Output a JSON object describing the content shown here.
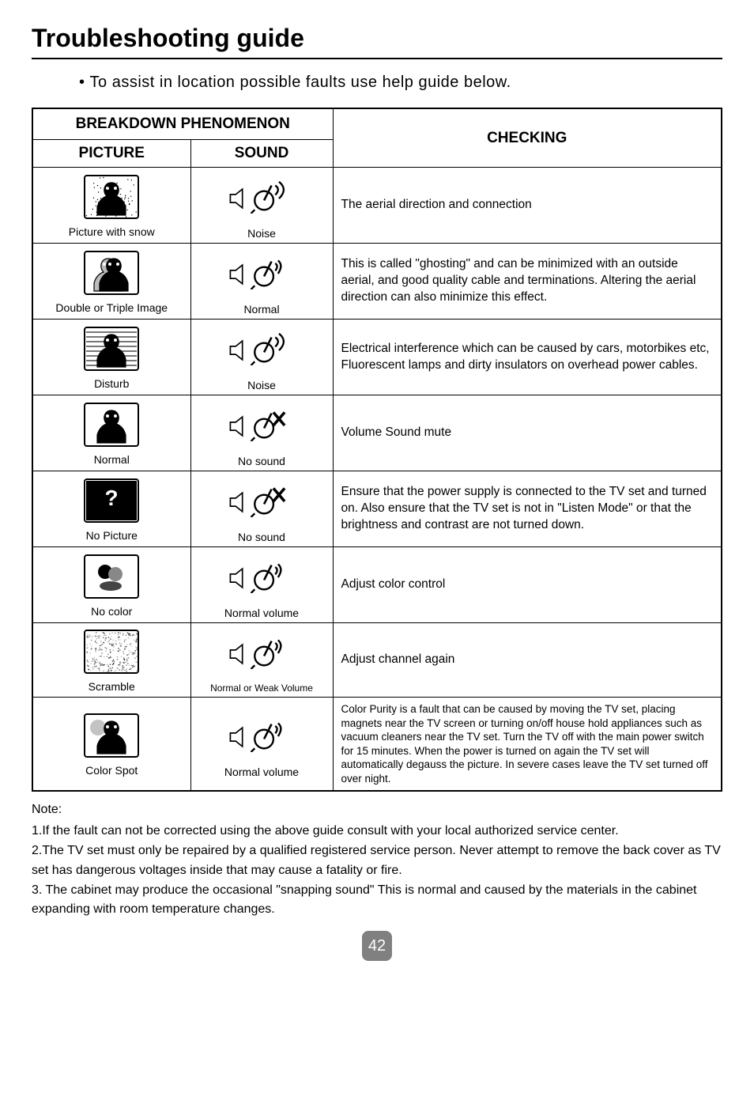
{
  "title": "Troubleshooting guide",
  "subline": "To assist in location possible faults use help guide below.",
  "table": {
    "header_top": "BREAKDOWN PHENOMENON",
    "header_picture": "PICTURE",
    "header_sound": "SOUND",
    "header_checking": "CHECKING",
    "rows": [
      {
        "picture_label": "Picture with snow",
        "sound_label": "Noise",
        "checking": "The aerial direction and connection",
        "pic_variant": "snow",
        "snd_variant": "noise"
      },
      {
        "picture_label": "Double or Triple Image",
        "sound_label": "Normal",
        "checking": "This is called \"ghosting\" and can be minimized with an outside aerial, and good quality cable and terminations.  Altering the aerial direction can also minimize this effect.",
        "pic_variant": "ghost",
        "snd_variant": "normal"
      },
      {
        "picture_label": "Disturb",
        "sound_label": "Noise",
        "checking": "Electrical interference which can be caused by cars, motorbikes etc, Fluorescent lamps and dirty insulators on overhead power cables.",
        "pic_variant": "disturb",
        "snd_variant": "noise"
      },
      {
        "picture_label": "Normal",
        "sound_label": "No sound",
        "checking": "Volume Sound mute",
        "pic_variant": "normal",
        "snd_variant": "nosound"
      },
      {
        "picture_label": "No Picture",
        "sound_label": "No sound",
        "checking": "Ensure that the power supply is connected to the TV set and turned on. Also ensure that the TV set is not  in \"Listen Mode\" or that the  brightness and contrast are not turned down.",
        "pic_variant": "nopic",
        "snd_variant": "nosound"
      },
      {
        "picture_label": "No color",
        "sound_label": "Normal volume",
        "checking": "Adjust color control",
        "pic_variant": "nocolor",
        "snd_variant": "normal"
      },
      {
        "picture_label": "Scramble",
        "sound_label": "Normal or Weak Volume",
        "checking": "Adjust channel again",
        "pic_variant": "scramble",
        "snd_variant": "normal",
        "sound_label_small": true
      },
      {
        "picture_label": "Color Spot",
        "sound_label": "Normal volume",
        "checking": "Color Purity is a fault that can be caused by moving the TV set, placing magnets near the TV screen or turning on/off house hold appliances such as vacuum cleaners near the TV set.  Turn the TV off with the main power switch for 15 minutes. When the power is turned on again the TV set will automatically degauss the picture. In severe cases leave the TV set turned off over night.",
        "pic_variant": "colorspot",
        "snd_variant": "normal",
        "checking_small": true
      }
    ]
  },
  "notes": {
    "heading": "Note:",
    "items": [
      "1.If the fault can not be corrected using the above guide consult with your local authorized service center.",
      "2.The TV set must only be repaired by a qualified registered service person.  Never attempt to remove the back cover as TV set has dangerous voltages inside that may cause a fatality or fire.",
      "3. The cabinet may produce the occasional \"snapping sound\" This is normal and caused by the materials in the cabinet expanding with room temperature changes."
    ]
  },
  "page_number": "42",
  "colors": {
    "text": "#000000",
    "bg": "#ffffff",
    "badge_bg": "#808080",
    "badge_fg": "#ffffff"
  }
}
